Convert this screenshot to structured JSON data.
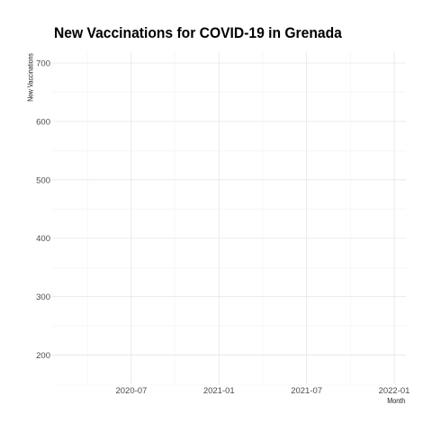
{
  "chart_data": {
    "type": "line",
    "title": "New Vaccinations for COVID-19 in Grenada",
    "xlabel": "Month",
    "ylabel": "New Vaccinations",
    "x_ticks": [
      "2020-07",
      "2021-01",
      "2021-07",
      "2022-01"
    ],
    "y_ticks": [
      200,
      300,
      400,
      500,
      600,
      700
    ],
    "xlim": [
      "2020-03",
      "2022-01"
    ],
    "ylim": [
      150,
      720
    ],
    "series": [],
    "grid": true,
    "legend": "none"
  }
}
